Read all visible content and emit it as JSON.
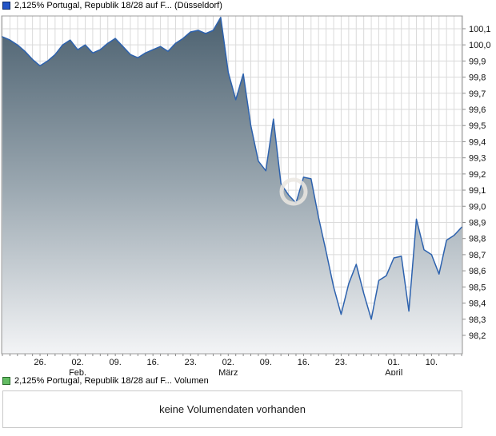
{
  "price_panel": {
    "legend_label": "2,125% Portugal, Republik 18/28 auf F... (Düsseldorf)",
    "swatch_fill": "#2355c7",
    "swatch_border": "#0d2a63"
  },
  "volume_panel": {
    "legend_label": "2,125% Portugal, Republik 18/28 auf F... Volumen",
    "swatch_fill": "#63bc63",
    "swatch_border": "#2b6e2d",
    "message": "keine Volumendaten vorhanden"
  },
  "chart_data": {
    "type": "area",
    "title": "2,125% Portugal, Republik 18/28 auf F... (Düsseldorf)",
    "ylabel": "",
    "xlabel": "",
    "grid": true,
    "legend_position": "top-left",
    "ylim": [
      98.086,
      100.179
    ],
    "series": [
      {
        "name": "2,125% Portugal, Republik 18/28 auf F...",
        "values": [
          100.05,
          100.03,
          100.0,
          99.96,
          99.91,
          99.87,
          99.9,
          99.94,
          100.0,
          100.03,
          99.97,
          100.0,
          99.95,
          99.97,
          100.01,
          100.04,
          99.99,
          99.94,
          99.92,
          99.95,
          99.97,
          99.99,
          99.96,
          100.01,
          100.04,
          100.08,
          100.09,
          100.07,
          100.09,
          100.17,
          99.83,
          99.66,
          99.82,
          99.5,
          99.28,
          99.22,
          99.54,
          99.14,
          99.07,
          99.02,
          99.18,
          99.17,
          98.93,
          98.72,
          98.5,
          98.33,
          98.52,
          98.64,
          98.46,
          98.3,
          98.54,
          98.57,
          98.68,
          98.69,
          98.35,
          98.92,
          98.73,
          98.7,
          98.58,
          98.79,
          98.82,
          98.87
        ]
      }
    ],
    "x_ticks": [
      {
        "index": 5,
        "label": "26.",
        "month": ""
      },
      {
        "index": 10,
        "label": "02.",
        "month": "Feb."
      },
      {
        "index": 15,
        "label": "09.",
        "month": ""
      },
      {
        "index": 20,
        "label": "16.",
        "month": ""
      },
      {
        "index": 25,
        "label": "23.",
        "month": ""
      },
      {
        "index": 30,
        "label": "02.",
        "month": "März"
      },
      {
        "index": 35,
        "label": "09.",
        "month": ""
      },
      {
        "index": 40,
        "label": "16.",
        "month": ""
      },
      {
        "index": 45,
        "label": "23.",
        "month": ""
      },
      {
        "index": 52,
        "label": "01.",
        "month": "April"
      },
      {
        "index": 57,
        "label": "10.",
        "month": ""
      }
    ],
    "y_ticks": [
      {
        "value": 100.1,
        "label": "100,1"
      },
      {
        "value": 100.0,
        "label": "100,0"
      },
      {
        "value": 99.9,
        "label": "99,9"
      },
      {
        "value": 99.8,
        "label": "99,8"
      },
      {
        "value": 99.7,
        "label": "99,7"
      },
      {
        "value": 99.6,
        "label": "99,6"
      },
      {
        "value": 99.5,
        "label": "99,5"
      },
      {
        "value": 99.4,
        "label": "99,4"
      },
      {
        "value": 99.3,
        "label": "99,3"
      },
      {
        "value": 99.2,
        "label": "99,2"
      },
      {
        "value": 99.1,
        "label": "99,1"
      },
      {
        "value": 99.0,
        "label": "99,0"
      },
      {
        "value": 98.9,
        "label": "98,9"
      },
      {
        "value": 98.8,
        "label": "98,8"
      },
      {
        "value": 98.7,
        "label": "98,7"
      },
      {
        "value": 98.6,
        "label": "98,6"
      },
      {
        "value": 98.5,
        "label": "98,5"
      },
      {
        "value": 98.4,
        "label": "98,4"
      },
      {
        "value": 98.3,
        "label": "98,3"
      },
      {
        "value": 98.2,
        "label": "98,2"
      }
    ],
    "colors": {
      "line": "#2d62ae",
      "fill_top": "#4c6170",
      "fill_mid": "#9aa7b0",
      "fill_bottom": "#f3f4f6",
      "grid": "#dadada",
      "frame": "#9c9c9c",
      "tick": "#8c8c8c",
      "label": "#111111",
      "watermark": "#ebe8e2"
    }
  }
}
